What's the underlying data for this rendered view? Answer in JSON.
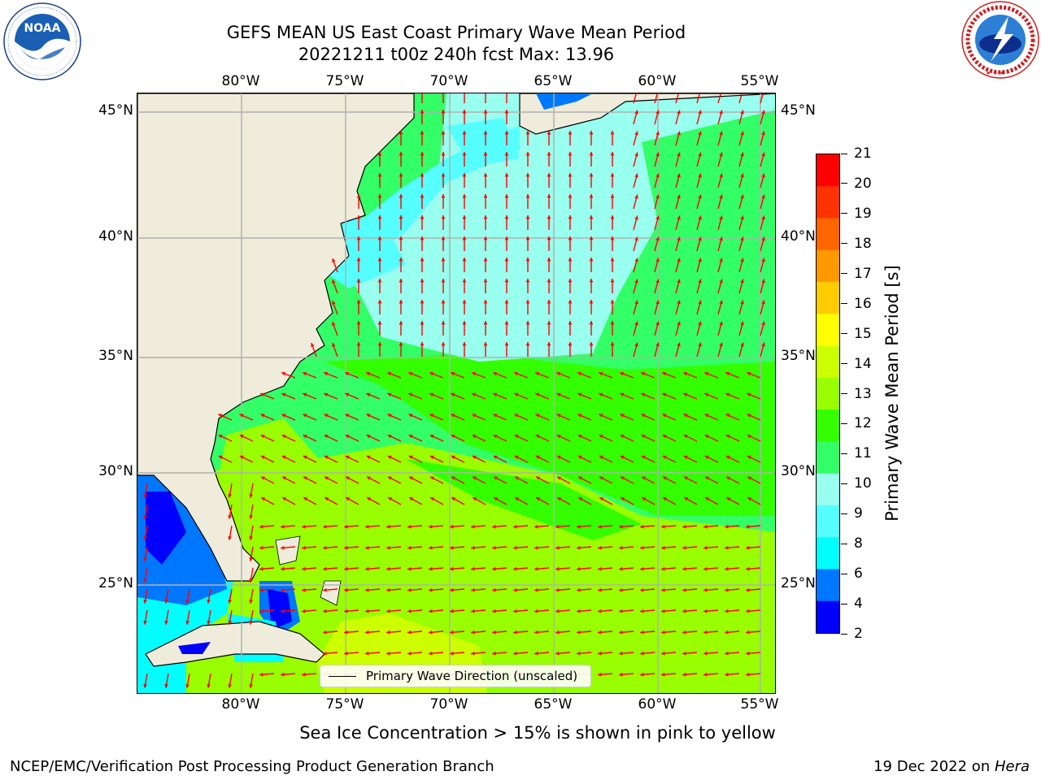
{
  "title_line1": "GEFS MEAN US East Coast Primary Wave Mean Period",
  "title_line2": "20221211 t00z 240h fcst   Max: 13.96",
  "logos": {
    "left": {
      "name": "noaa-logo",
      "text": "NOAA",
      "ring_text": "NATIONAL OCEANIC AND ATMOSPHERIC ADMINISTRATION · U.S. DEPARTMENT OF COMMERCE"
    },
    "right": {
      "name": "nws-logo",
      "ring_text": "NATIONAL WEATHER SERVICE"
    }
  },
  "map": {
    "projection": "lat-lon",
    "lon_range": [
      -85,
      -54.5
    ],
    "lat_range": [
      20.5,
      45.8
    ],
    "lon_ticks": [
      "80°W",
      "75°W",
      "70°W",
      "65°W",
      "60°W",
      "55°W"
    ],
    "lat_ticks": [
      "45°N",
      "40°N",
      "35°N",
      "30°N",
      "25°N"
    ],
    "grid": true,
    "land_color": "#efecdb",
    "arrow_color": "#ff0000"
  },
  "legend": {
    "label": "Primary Wave Direction (unscaled)"
  },
  "colorbar": {
    "label": "Primary Wave Mean Period [s]",
    "ticks": [
      "21",
      "20",
      "19",
      "18",
      "17",
      "16",
      "15",
      "14",
      "13",
      "12",
      "11",
      "10",
      "9",
      "8",
      "6",
      "4",
      "2"
    ],
    "colors": [
      "#ff0000",
      "#ff3300",
      "#ff6600",
      "#ff9900",
      "#ffcc00",
      "#ffff00",
      "#ccff00",
      "#99ff00",
      "#33ff00",
      "#33ff66",
      "#99ffee",
      "#55ffff",
      "#00ffff",
      "#0077ff",
      "#0000ff"
    ]
  },
  "sea_ice_note": "Sea Ice Concentration > 15% is shown in pink to yellow",
  "footer_left": "NCEP/EMC/Verification Post Processing Product Generation Branch",
  "footer_right_prefix": "19 Dec 2022 on ",
  "footer_right_host": "Hera"
}
